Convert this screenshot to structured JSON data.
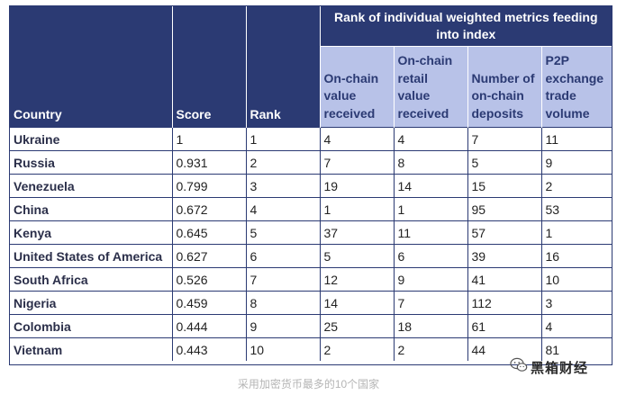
{
  "table": {
    "headers": {
      "country": "Country",
      "score": "Score",
      "rank": "Rank",
      "group": "Rank of individual weighted metrics feeding into index",
      "metrics": [
        "On-chain value received",
        "On-chain retail value received",
        "Number of on-chain deposits",
        "P2P exchange trade volume"
      ]
    },
    "rows": [
      {
        "country": "Ukraine",
        "score": "1",
        "rank": "1",
        "m1": "4",
        "m2": "4",
        "m3": "7",
        "m4": "11"
      },
      {
        "country": "Russia",
        "score": "0.931",
        "rank": "2",
        "m1": "7",
        "m2": "8",
        "m3": "5",
        "m4": "9"
      },
      {
        "country": "Venezuela",
        "score": "0.799",
        "rank": "3",
        "m1": "19",
        "m2": "14",
        "m3": "15",
        "m4": "2"
      },
      {
        "country": "China",
        "score": "0.672",
        "rank": "4",
        "m1": "1",
        "m2": "1",
        "m3": "95",
        "m4": "53"
      },
      {
        "country": "Kenya",
        "score": "0.645",
        "rank": "5",
        "m1": "37",
        "m2": "11",
        "m3": "57",
        "m4": "1"
      },
      {
        "country": "United States of America",
        "score": "0.627",
        "rank": "6",
        "m1": "5",
        "m2": "6",
        "m3": "39",
        "m4": "16"
      },
      {
        "country": "South Africa",
        "score": "0.526",
        "rank": "7",
        "m1": "12",
        "m2": "9",
        "m3": "41",
        "m4": "10"
      },
      {
        "country": "Nigeria",
        "score": "0.459",
        "rank": "8",
        "m1": "14",
        "m2": "7",
        "m3": "112",
        "m4": "3"
      },
      {
        "country": "Colombia",
        "score": "0.444",
        "rank": "9",
        "m1": "25",
        "m2": "18",
        "m3": "61",
        "m4": "4"
      },
      {
        "country": "Vietnam",
        "score": "0.443",
        "rank": "10",
        "m1": "2",
        "m2": "2",
        "m3": "44",
        "m4": "81"
      }
    ]
  },
  "caption": "采用加密货币最多的10个国家",
  "watermark": {
    "text": "黑箱财经",
    "icon": "wechat-icon"
  },
  "colors": {
    "header_dark": "#2b3a73",
    "header_light": "#b8c2e8"
  }
}
